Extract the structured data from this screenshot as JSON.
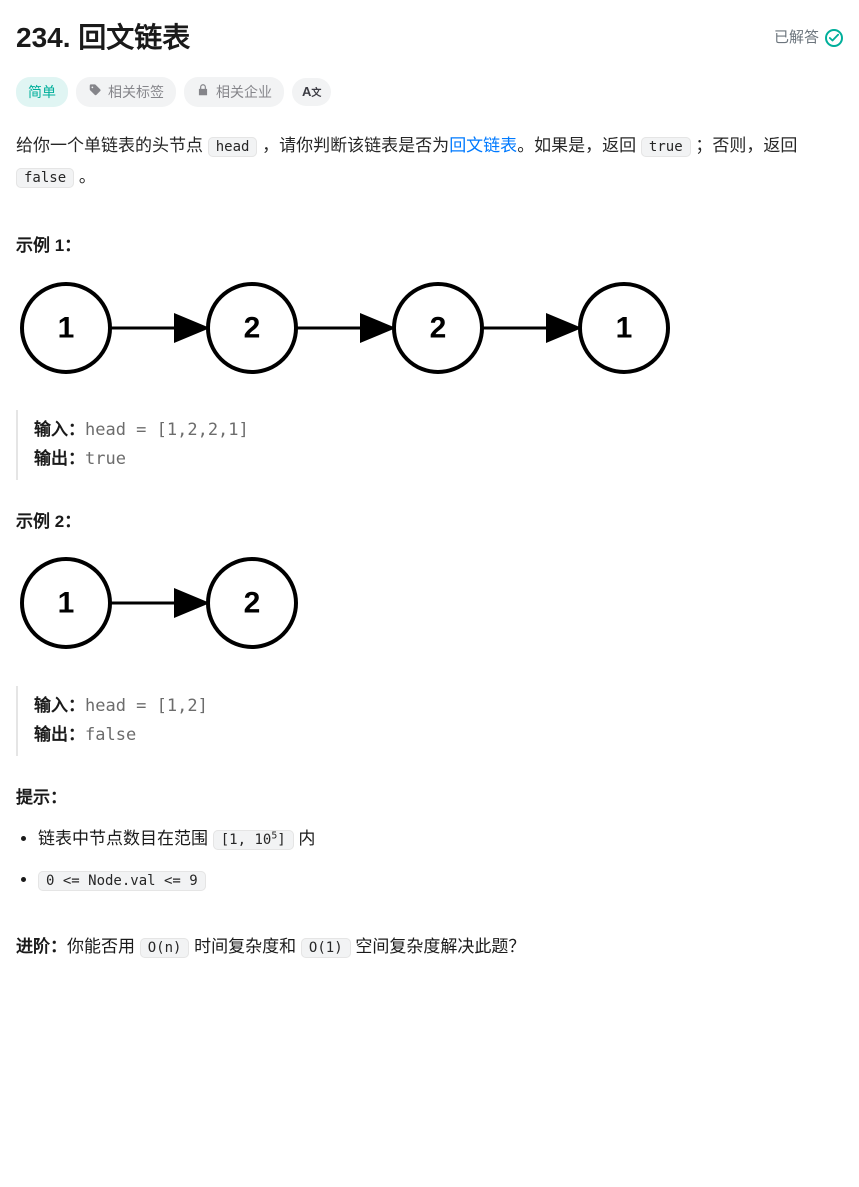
{
  "header": {
    "title": "234. 回文链表",
    "status_label": "已解答"
  },
  "pills": {
    "difficulty": "简单",
    "tags": "相关标签",
    "companies": "相关企业",
    "translate": "A"
  },
  "description": {
    "prefix": "给你一个单链表的头节点 ",
    "head_code": "head",
    "mid": " ，请你判断该链表是否为",
    "link_text": "回文链表",
    "after_link": "。如果是，返回 ",
    "true_code": "true",
    "before_false": " ；否则，返回 ",
    "false_code": "false",
    "suffix": " 。"
  },
  "diagram": {
    "node_radius": 44,
    "node_stroke": "#000000",
    "node_stroke_width": 4,
    "node_fill": "#ffffff",
    "text_color": "#000000",
    "text_size": 30,
    "text_weight": 700,
    "arrow_stroke": "#000000",
    "arrow_width": 3,
    "spacing": 186
  },
  "examples": [
    {
      "heading": "示例 1：",
      "nodes": [
        "1",
        "2",
        "2",
        "1"
      ],
      "input_label": "输入：",
      "input_value": "head = [1,2,2,1]",
      "output_label": "输出：",
      "output_value": "true"
    },
    {
      "heading": "示例 2：",
      "nodes": [
        "1",
        "2"
      ],
      "input_label": "输入：",
      "input_value": "head = [1,2]",
      "output_label": "输出：",
      "output_value": "false"
    }
  ],
  "constraints": {
    "heading": "提示：",
    "items": [
      {
        "prefix": "链表中节点数目在范围 ",
        "code": "[1, 10^5]",
        "code_has_sup": true,
        "suffix": " 内"
      },
      {
        "prefix": "",
        "code": "0 <= Node.val <= 9",
        "code_has_sup": false,
        "suffix": ""
      }
    ]
  },
  "followup": {
    "label": "进阶：",
    "prefix": "你能否用 ",
    "code1": "O(n)",
    "mid": " 时间复杂度和 ",
    "code2": "O(1)",
    "suffix": " 空间复杂度解决此题？"
  }
}
